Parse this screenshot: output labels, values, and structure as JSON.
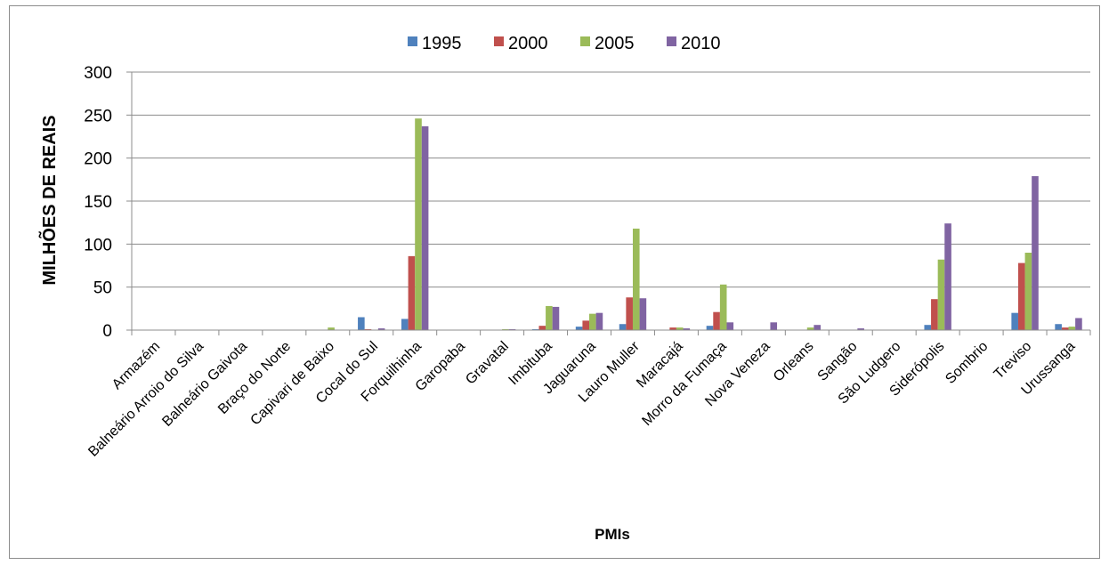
{
  "chart_data": {
    "type": "bar",
    "title": "",
    "xlabel": "PMIs",
    "ylabel": "MILHÕES DE REAIS",
    "ylim": [
      0,
      300
    ],
    "yticks": [
      0,
      50,
      100,
      150,
      200,
      250,
      300
    ],
    "grid": true,
    "legend_position": "top",
    "categories": [
      "Armazém",
      "Balneário Arroio do Silva",
      "Balneário Gaivota",
      "Braço do Norte",
      "Capivari de Baixo",
      "Cocal do Sul",
      "Forquilhinha",
      "Garopaba",
      "Gravatal",
      "Imbituba",
      "Jaguaruna",
      "Lauro Muller",
      "Maracajá",
      "Morro da Fumaça",
      "Nova Veneza",
      "Orleans",
      "Sangão",
      "São Ludgero",
      "Siderópolis",
      "Sombrio",
      "Treviso",
      "Urussanga"
    ],
    "series": [
      {
        "name": "1995",
        "color": "#4f81bd",
        "values": [
          0,
          0,
          0,
          0,
          0,
          15,
          13,
          0,
          0,
          1,
          4,
          7,
          0,
          5,
          0,
          0,
          0,
          0,
          6,
          0,
          20,
          7
        ]
      },
      {
        "name": "2000",
        "color": "#c0504d",
        "values": [
          0,
          0,
          0,
          0,
          0,
          1,
          86,
          0,
          0,
          5,
          11,
          38,
          3,
          21,
          0,
          0,
          0,
          0,
          36,
          0,
          78,
          3
        ]
      },
      {
        "name": "2005",
        "color": "#9bbb59",
        "values": [
          0,
          0,
          0,
          0,
          3,
          0,
          246,
          0,
          1,
          28,
          19,
          118,
          3,
          53,
          0,
          3,
          0,
          0,
          82,
          0,
          90,
          4
        ]
      },
      {
        "name": "2010",
        "color": "#8064a2",
        "values": [
          0,
          0,
          0,
          0,
          0,
          2,
          237,
          0,
          1,
          27,
          20,
          37,
          2,
          9,
          9,
          6,
          2,
          0,
          124,
          0,
          179,
          14
        ]
      }
    ]
  }
}
